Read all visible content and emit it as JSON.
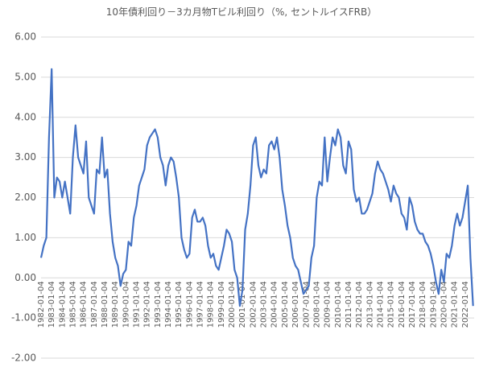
{
  "chart_data": {
    "type": "line",
    "title": "10年債利回り－3カ月物Tビル利回り（%, セントルイスFRB）",
    "color": "#4472c4",
    "grid": true,
    "ylim": [
      -2,
      6
    ],
    "yticks": [
      {
        "value": -2,
        "label": "-2.00"
      },
      {
        "value": -1,
        "label": "-1.00"
      },
      {
        "value": 0,
        "label": "0.00"
      },
      {
        "value": 1,
        "label": "1.00"
      },
      {
        "value": 2,
        "label": "2.00"
      },
      {
        "value": 3,
        "label": "3.00"
      },
      {
        "value": 4,
        "label": "4.00"
      },
      {
        "value": 5,
        "label": "5.00"
      },
      {
        "value": 6,
        "label": "6.00"
      }
    ],
    "xlim": [
      1982,
      2022.85
    ],
    "xticks": [
      {
        "value": 1982,
        "label": "1982-01-04"
      },
      {
        "value": 1983,
        "label": "1983-01-04"
      },
      {
        "value": 1984,
        "label": "1984-01-04"
      },
      {
        "value": 1985,
        "label": "1985-01-04"
      },
      {
        "value": 1986,
        "label": "1986-01-04"
      },
      {
        "value": 1987,
        "label": "1987-01-04"
      },
      {
        "value": 1988,
        "label": "1988-01-04"
      },
      {
        "value": 1989,
        "label": "1989-01-04"
      },
      {
        "value": 1990,
        "label": "1990-01-04"
      },
      {
        "value": 1991,
        "label": "1991-01-04"
      },
      {
        "value": 1992,
        "label": "1992-01-04"
      },
      {
        "value": 1993,
        "label": "1993-01-04"
      },
      {
        "value": 1994,
        "label": "1994-01-04"
      },
      {
        "value": 1995,
        "label": "1995-01-04"
      },
      {
        "value": 1996,
        "label": "1996-01-04"
      },
      {
        "value": 1997,
        "label": "1997-01-04"
      },
      {
        "value": 1998,
        "label": "1998-01-04"
      },
      {
        "value": 1999,
        "label": "1999-01-04"
      },
      {
        "value": 2000,
        "label": "2000-01-04"
      },
      {
        "value": 2001,
        "label": "2001-01-04"
      },
      {
        "value": 2002,
        "label": "2002-01-04"
      },
      {
        "value": 2003,
        "label": "2003-01-04"
      },
      {
        "value": 2004,
        "label": "2004-01-04"
      },
      {
        "value": 2005,
        "label": "2005-01-04"
      },
      {
        "value": 2006,
        "label": "2006-01-04"
      },
      {
        "value": 2007,
        "label": "2007-01-04"
      },
      {
        "value": 2008,
        "label": "2008-01-04"
      },
      {
        "value": 2009,
        "label": "2009-01-04"
      },
      {
        "value": 2010,
        "label": "2010-01-04"
      },
      {
        "value": 2011,
        "label": "2011-01-04"
      },
      {
        "value": 2012,
        "label": "2012-01-04"
      },
      {
        "value": 2013,
        "label": "2013-01-04"
      },
      {
        "value": 2014,
        "label": "2014-01-04"
      },
      {
        "value": 2015,
        "label": "2015-01-04"
      },
      {
        "value": 2016,
        "label": "2016-01-04"
      },
      {
        "value": 2017,
        "label": "2017-01-04"
      },
      {
        "value": 2018,
        "label": "2018-01-04"
      },
      {
        "value": 2019,
        "label": "2019-01-04"
      },
      {
        "value": 2020,
        "label": "2020-01-04"
      },
      {
        "value": 2021,
        "label": "2021-01-04"
      },
      {
        "value": 2022,
        "label": "2022-01-04"
      }
    ],
    "x": [
      1982,
      1982.25,
      1982.5,
      1982.75,
      1983,
      1983.25,
      1983.5,
      1983.75,
      1984,
      1984.25,
      1984.5,
      1984.75,
      1985,
      1985.25,
      1985.5,
      1985.75,
      1986,
      1986.25,
      1986.5,
      1986.75,
      1987,
      1987.25,
      1987.5,
      1987.75,
      1988,
      1988.25,
      1988.5,
      1988.75,
      1989,
      1989.25,
      1989.5,
      1989.75,
      1990,
      1990.25,
      1990.5,
      1990.75,
      1991,
      1991.25,
      1991.5,
      1991.75,
      1992,
      1992.25,
      1992.5,
      1992.75,
      1993,
      1993.25,
      1993.5,
      1993.75,
      1994,
      1994.25,
      1994.5,
      1994.75,
      1995,
      1995.25,
      1995.5,
      1995.75,
      1996,
      1996.25,
      1996.5,
      1996.75,
      1997,
      1997.25,
      1997.5,
      1997.75,
      1998,
      1998.25,
      1998.5,
      1998.75,
      1999,
      1999.25,
      1999.5,
      1999.75,
      2000,
      2000.25,
      2000.5,
      2000.75,
      2001,
      2001.25,
      2001.5,
      2001.75,
      2002,
      2002.25,
      2002.5,
      2002.75,
      2003,
      2003.25,
      2003.5,
      2003.75,
      2004,
      2004.25,
      2004.5,
      2004.75,
      2005,
      2005.25,
      2005.5,
      2005.75,
      2006,
      2006.25,
      2006.5,
      2006.75,
      2007,
      2007.25,
      2007.5,
      2007.75,
      2008,
      2008.25,
      2008.5,
      2008.75,
      2009,
      2009.25,
      2009.5,
      2009.75,
      2010,
      2010.25,
      2010.5,
      2010.75,
      2011,
      2011.25,
      2011.5,
      2011.75,
      2012,
      2012.25,
      2012.5,
      2012.75,
      2013,
      2013.25,
      2013.5,
      2013.75,
      2014,
      2014.25,
      2014.5,
      2014.75,
      2015,
      2015.25,
      2015.5,
      2015.75,
      2016,
      2016.25,
      2016.5,
      2016.75,
      2017,
      2017.25,
      2017.5,
      2017.75,
      2018,
      2018.25,
      2018.5,
      2018.75,
      2019,
      2019.25,
      2019.5,
      2019.75,
      2020,
      2020.25,
      2020.5,
      2020.75,
      2021,
      2021.25,
      2021.5,
      2021.75,
      2022,
      2022.25,
      2022.5,
      2022.75
    ],
    "values": [
      0.5,
      0.8,
      1.0,
      3.5,
      5.2,
      2.0,
      2.5,
      2.4,
      2.0,
      2.4,
      2.0,
      1.6,
      3.0,
      3.8,
      3.0,
      2.8,
      2.6,
      3.4,
      2.0,
      1.8,
      1.6,
      2.7,
      2.6,
      3.5,
      2.5,
      2.7,
      1.6,
      0.9,
      0.5,
      0.3,
      -0.2,
      0.1,
      0.2,
      0.9,
      0.8,
      1.5,
      1.8,
      2.3,
      2.5,
      2.7,
      3.3,
      3.5,
      3.6,
      3.7,
      3.5,
      3.0,
      2.8,
      2.3,
      2.8,
      3.0,
      2.9,
      2.5,
      2.0,
      1.0,
      0.7,
      0.5,
      0.6,
      1.5,
      1.7,
      1.4,
      1.4,
      1.5,
      1.3,
      0.8,
      0.5,
      0.6,
      0.3,
      0.2,
      0.5,
      0.8,
      1.2,
      1.1,
      0.9,
      0.2,
      0.0,
      -0.7,
      -0.3,
      1.2,
      1.6,
      2.3,
      3.3,
      3.5,
      2.8,
      2.5,
      2.7,
      2.6,
      3.3,
      3.4,
      3.2,
      3.5,
      3.0,
      2.2,
      1.8,
      1.3,
      1.0,
      0.5,
      0.3,
      0.2,
      -0.1,
      -0.4,
      -0.3,
      -0.2,
      0.5,
      0.8,
      2.0,
      2.4,
      2.3,
      3.5,
      2.4,
      3.0,
      3.5,
      3.3,
      3.7,
      3.5,
      2.8,
      2.6,
      3.4,
      3.2,
      2.2,
      1.9,
      2.0,
      1.6,
      1.6,
      1.7,
      1.9,
      2.1,
      2.6,
      2.9,
      2.7,
      2.6,
      2.4,
      2.2,
      1.9,
      2.3,
      2.1,
      2.0,
      1.6,
      1.5,
      1.2,
      2.0,
      1.8,
      1.4,
      1.2,
      1.1,
      1.1,
      0.9,
      0.8,
      0.6,
      0.3,
      -0.1,
      -0.4,
      0.2,
      -0.1,
      0.6,
      0.5,
      0.8,
      1.3,
      1.6,
      1.3,
      1.5,
      1.9,
      2.3,
      0.5,
      -0.7
    ]
  }
}
